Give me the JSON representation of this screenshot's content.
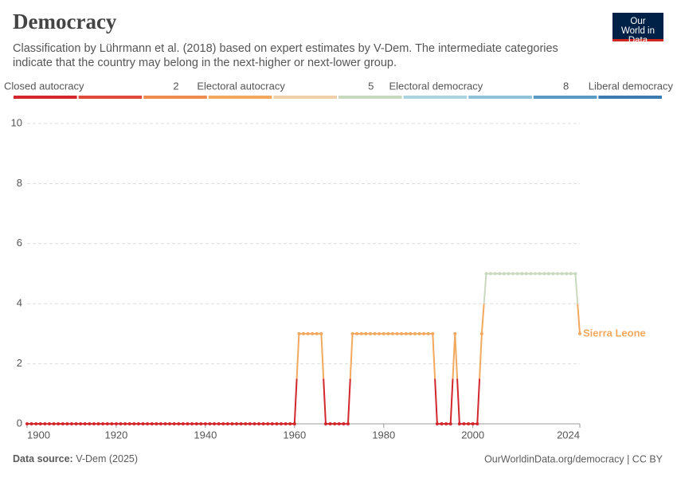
{
  "chart_data": {
    "type": "line",
    "title": "Democracy",
    "subtitle": "Classification by Lührmann et al. (2018) based on expert estimates by V-Dem. The intermediate categories indicate that the country may belong in the next-higher or next-lower group.",
    "legend": {
      "labels": [
        "Closed autocracy",
        null,
        2,
        "Electoral autocracy",
        null,
        5,
        "Electoral democracy",
        null,
        8,
        "Liberal democracy"
      ],
      "colors": [
        "#d3272d",
        "#e04a3b",
        "#ee8b50",
        "#f2a95f",
        "#efd0a8",
        "#c9d9bf",
        "#aad5e0",
        "#8ec2d9",
        "#5a9bc5",
        "#3b7bb2"
      ]
    },
    "x": [
      1900,
      1901,
      1902,
      1903,
      1904,
      1905,
      1906,
      1907,
      1908,
      1909,
      1910,
      1911,
      1912,
      1913,
      1914,
      1915,
      1916,
      1917,
      1918,
      1919,
      1920,
      1921,
      1922,
      1923,
      1924,
      1925,
      1926,
      1927,
      1928,
      1929,
      1930,
      1931,
      1932,
      1933,
      1934,
      1935,
      1936,
      1937,
      1938,
      1939,
      1940,
      1941,
      1942,
      1943,
      1944,
      1945,
      1946,
      1947,
      1948,
      1949,
      1950,
      1951,
      1952,
      1953,
      1954,
      1955,
      1956,
      1957,
      1958,
      1959,
      1960,
      1961,
      1962,
      1963,
      1964,
      1965,
      1966,
      1967,
      1968,
      1969,
      1970,
      1971,
      1972,
      1973,
      1974,
      1975,
      1976,
      1977,
      1978,
      1979,
      1980,
      1981,
      1982,
      1983,
      1984,
      1985,
      1986,
      1987,
      1988,
      1989,
      1990,
      1991,
      1992,
      1993,
      1994,
      1995,
      1996,
      1997,
      1998,
      1999,
      2000,
      2001,
      2002,
      2003,
      2004,
      2005,
      2006,
      2007,
      2008,
      2009,
      2010,
      2011,
      2012,
      2013,
      2014,
      2015,
      2016,
      2017,
      2018,
      2019,
      2020,
      2021,
      2022,
      2023,
      2024
    ],
    "series": [
      {
        "name": "Sierra Leone",
        "values": [
          0,
          0,
          0,
          0,
          0,
          0,
          0,
          0,
          0,
          0,
          0,
          0,
          0,
          0,
          0,
          0,
          0,
          0,
          0,
          0,
          0,
          0,
          0,
          0,
          0,
          0,
          0,
          0,
          0,
          0,
          0,
          0,
          0,
          0,
          0,
          0,
          0,
          0,
          0,
          0,
          0,
          0,
          0,
          0,
          0,
          0,
          0,
          0,
          0,
          0,
          0,
          0,
          0,
          0,
          0,
          0,
          0,
          0,
          0,
          0,
          0,
          3,
          3,
          3,
          3,
          3,
          3,
          0,
          0,
          0,
          0,
          0,
          0,
          3,
          3,
          3,
          3,
          3,
          3,
          3,
          3,
          3,
          3,
          3,
          3,
          3,
          3,
          3,
          3,
          3,
          3,
          3,
          0,
          0,
          0,
          0,
          3,
          0,
          0,
          0,
          0,
          0,
          3,
          5,
          5,
          5,
          5,
          5,
          5,
          5,
          5,
          5,
          5,
          5,
          5,
          5,
          5,
          5,
          5,
          5,
          5,
          5,
          5,
          5,
          3
        ]
      }
    ],
    "xlim": [
      1900,
      2024
    ],
    "xticks": [
      1900,
      1920,
      1940,
      1960,
      1980,
      2000,
      2024
    ],
    "ylim": [
      0,
      10
    ],
    "yticks": [
      0,
      2,
      4,
      6,
      8,
      10
    ],
    "grid": true,
    "logo": "Our World in Data",
    "source_label": "Data source:",
    "source": "V-Dem (2025)",
    "footer_right": "OurWorldinData.org/democracy | CC BY"
  }
}
